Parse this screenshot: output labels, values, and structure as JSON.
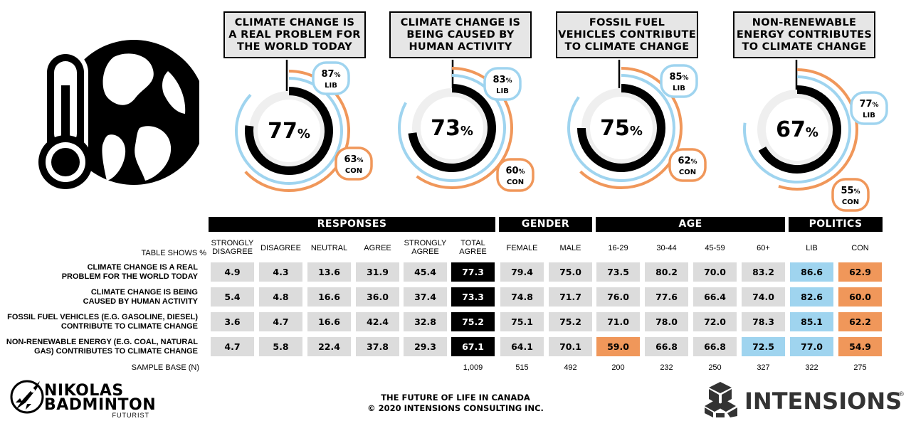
{
  "colors": {
    "lib": "#9fd4ef",
    "con": "#f0975a",
    "main": "#000000",
    "track": "#efefef",
    "title_bg": "#e6e6e6",
    "cell_bg": "#dcdcdc"
  },
  "icons": {
    "hero": "thermometer-globe-icon",
    "left_logo": "rocket-icon",
    "right_logo": "cubes-icon"
  },
  "donuts": [
    {
      "title": "CLIMATE CHANGE IS\nA REAL PROBLEM FOR\nTHE WORLD TODAY",
      "total": 77,
      "lib": 87,
      "con": 63
    },
    {
      "title": "CLIMATE CHANGE IS\nBEING CAUSED BY\nHUMAN ACTIVITY",
      "total": 73,
      "lib": 83,
      "con": 60
    },
    {
      "title": "FOSSIL FUEL\nVEHICLES CONTRIBUTE\nTO CLIMATE CHANGE",
      "total": 75,
      "lib": 85,
      "con": 62
    },
    {
      "title": "NON-RENEWABLE\nENERGY CONTRIBUTES\nTO CLIMATE CHANGE",
      "total": 67,
      "lib": 77,
      "con": 55
    }
  ],
  "donut_labels": {
    "pct": "%",
    "lib": "LIB",
    "con": "CON"
  },
  "table": {
    "table_shows": "TABLE SHOWS %",
    "groups": [
      "RESPONSES",
      "GENDER",
      "AGE",
      "POLITICS"
    ],
    "columns": [
      "STRONGLY\nDISAGREE",
      "DISAGREE",
      "NEUTRAL",
      "AGREE",
      "STRONGLY\nAGREE",
      "TOTAL\nAGREE",
      "FEMALE",
      "MALE",
      "16-29",
      "30-44",
      "45-59",
      "60+",
      "LIB",
      "CON"
    ],
    "rows": [
      {
        "label": "CLIMATE CHANGE IS A REAL\nPROBLEM FOR THE WORLD TODAY",
        "values": [
          "4.9",
          "4.3",
          "13.6",
          "31.9",
          "45.4",
          "77.3",
          "79.4",
          "75.0",
          "73.5",
          "80.2",
          "70.0",
          "83.2",
          "86.6",
          "62.9"
        ]
      },
      {
        "label": "CLIMATE CHANGE IS BEING\nCAUSED BY HUMAN ACTIVITY",
        "values": [
          "5.4",
          "4.8",
          "16.6",
          "36.0",
          "37.4",
          "73.3",
          "74.8",
          "71.7",
          "76.0",
          "77.6",
          "66.4",
          "74.0",
          "82.6",
          "60.0"
        ]
      },
      {
        "label": "FOSSIL FUEL VEHICLES (E.G. GASOLINE, DIESEL)\nCONTRIBUTE TO CLIMATE CHANGE",
        "values": [
          "3.6",
          "4.7",
          "16.6",
          "42.4",
          "32.8",
          "75.2",
          "75.1",
          "75.2",
          "71.0",
          "78.0",
          "72.0",
          "78.3",
          "85.1",
          "62.2"
        ]
      },
      {
        "label": "NON-RENEWABLE ENERGY (E.G. COAL, NATURAL\nGAS) CONTRIBUTES TO CLIMATE CHANGE",
        "values": [
          "4.7",
          "5.8",
          "22.4",
          "37.8",
          "29.3",
          "67.1",
          "64.1",
          "70.1",
          "59.0",
          "66.8",
          "66.8",
          "72.5",
          "77.0",
          "54.9"
        ]
      }
    ],
    "sample_label": "SAMPLE BASE (N)",
    "sample_base": [
      "",
      "",
      "",
      "",
      "",
      "1,009",
      "515",
      "492",
      "200",
      "232",
      "250",
      "327",
      "322",
      "275"
    ]
  },
  "footer": {
    "line1": "THE FUTURE OF LIFE IN CANADA",
    "line2": "© 2020 INTENSIONS CONSULTING INC."
  },
  "brand_left": {
    "name1": "NIKOLAS",
    "name2": "BADMINTON",
    "tagline": "FUTURIST"
  },
  "brand_right": {
    "name": "INTENSIONS",
    "mark": "®"
  }
}
